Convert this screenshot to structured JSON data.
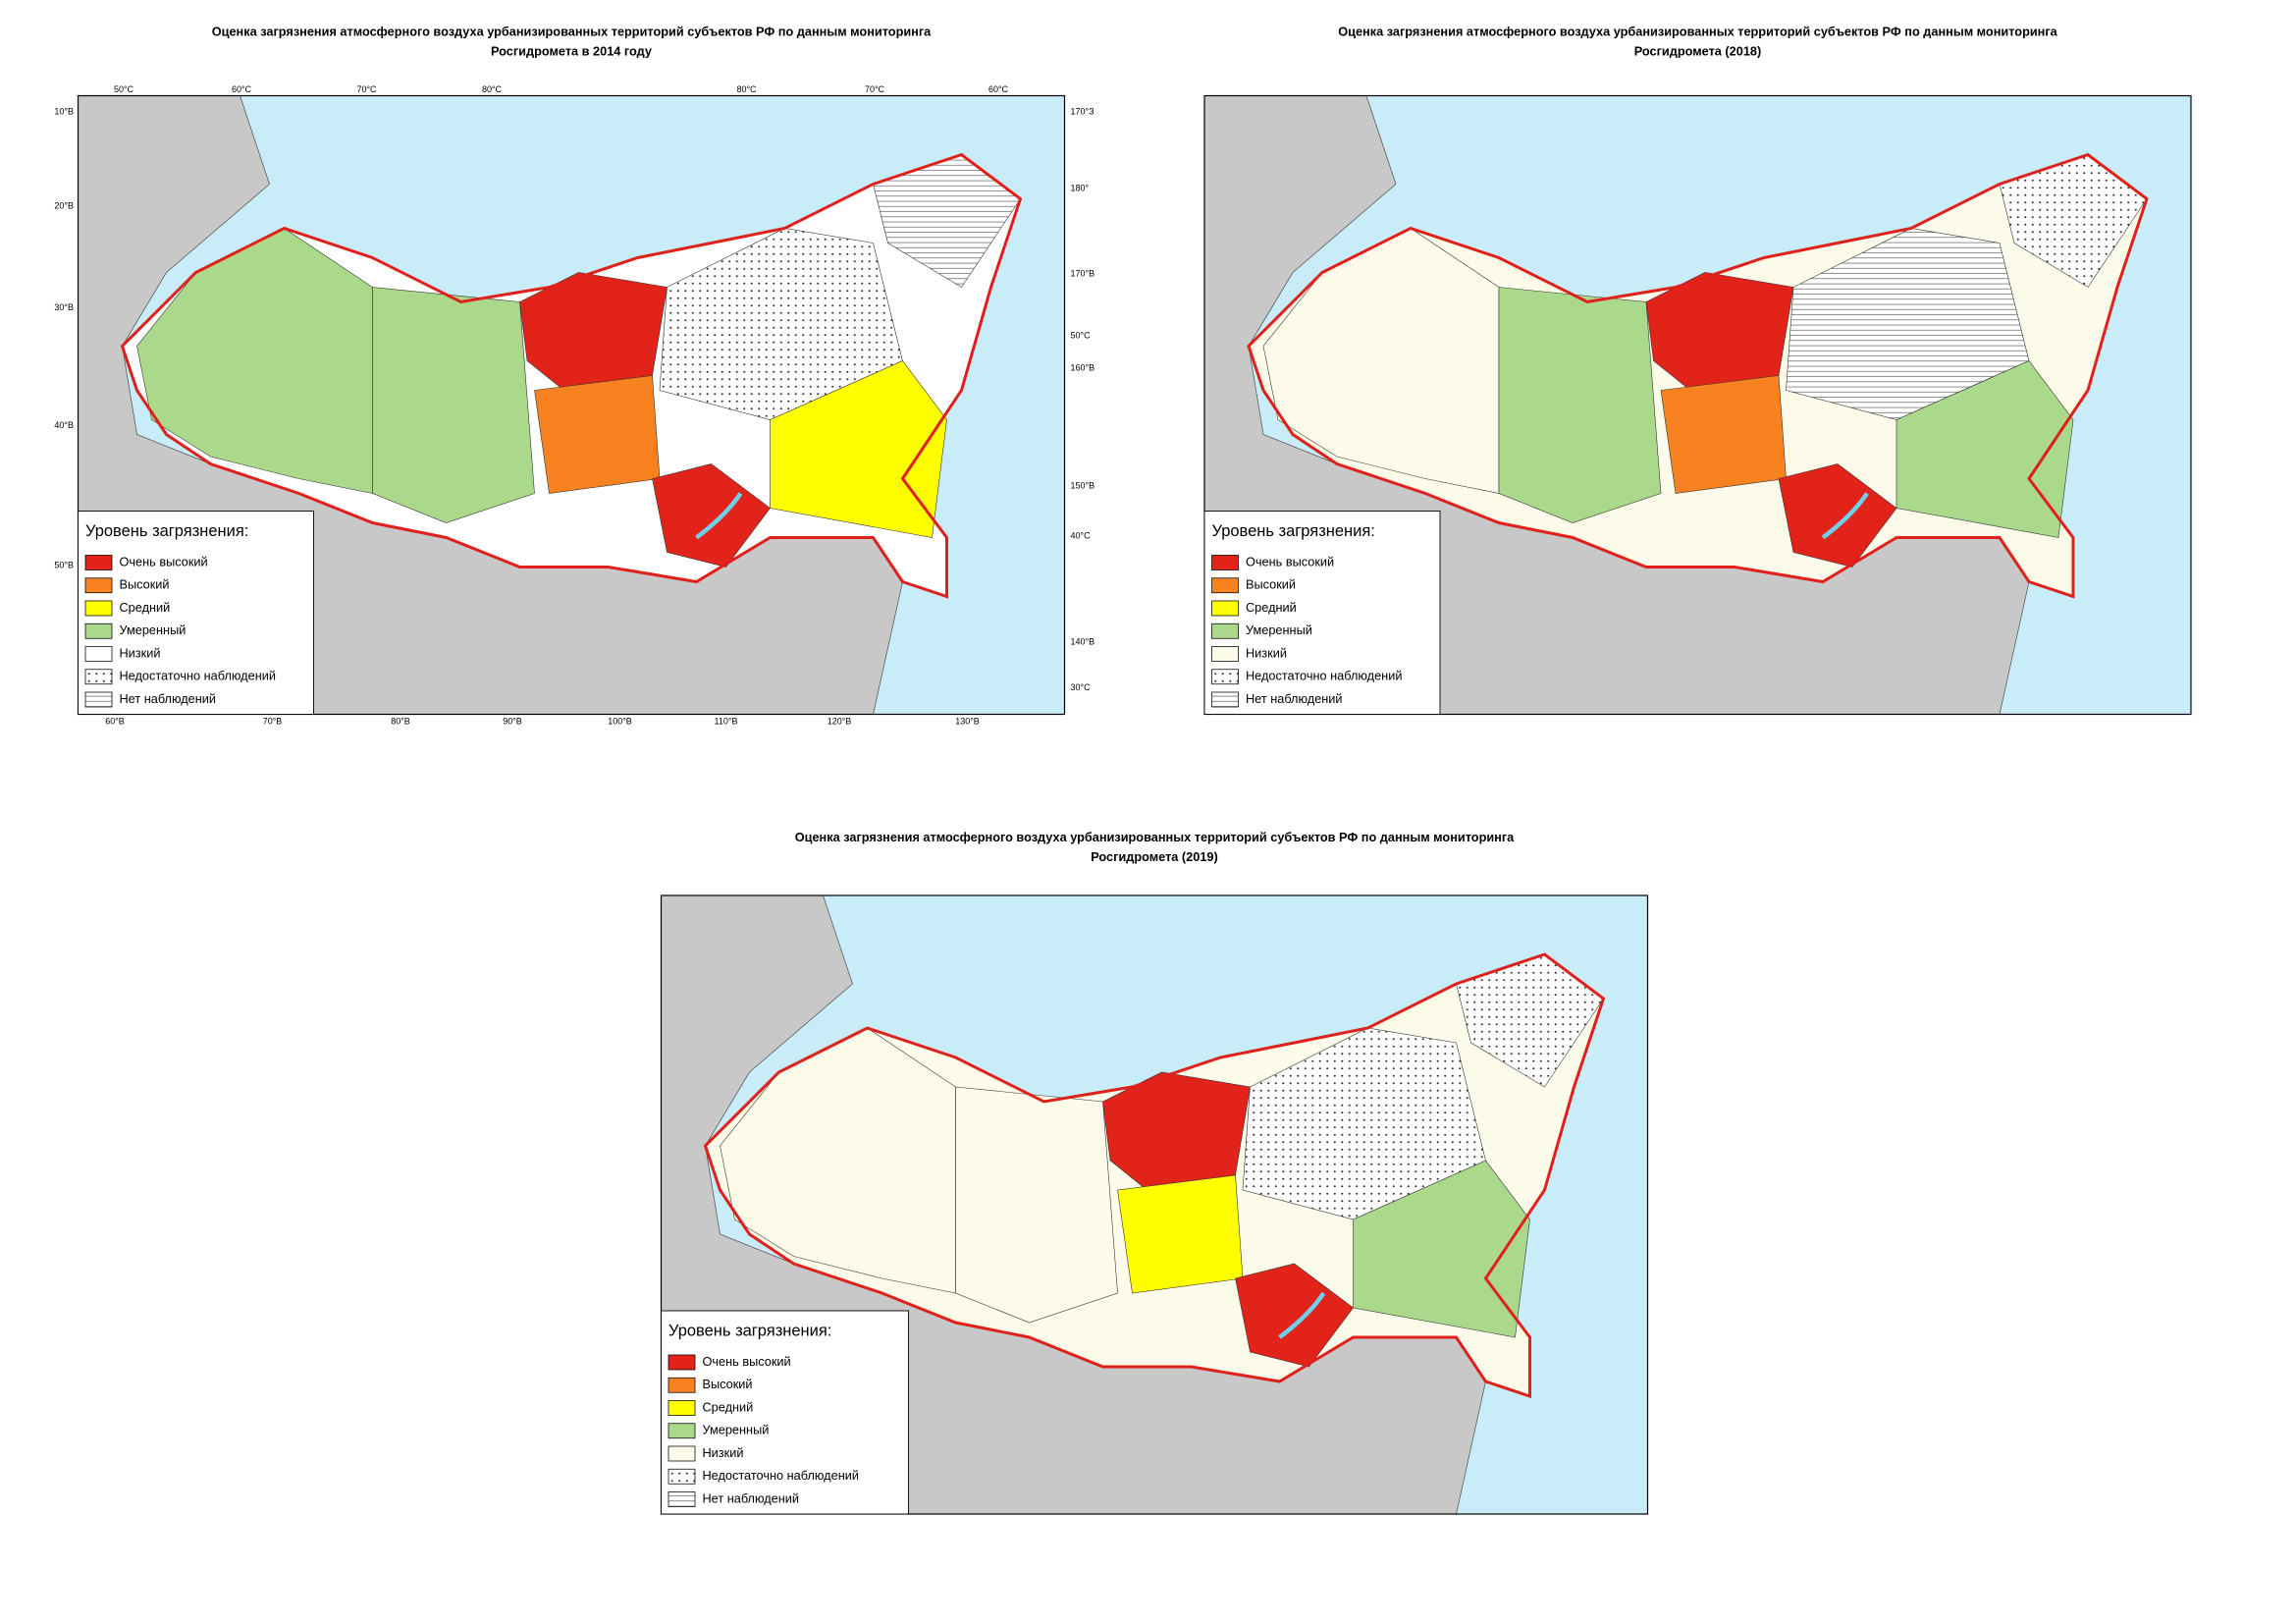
{
  "maps": [
    {
      "title": [
        "Оценка загрязнения атмосферного воздуха урбанизированных территорий субъектов РФ по данным мониторинга",
        "Росгидромета в 2014 году"
      ],
      "legend": {
        "title": "Уровень загрязнения:",
        "items": [
          "Очень высокий",
          "Высокий",
          "Средний",
          "Умеренный",
          "Низкий",
          "Недостаточно наблюдений",
          "Нет наблюдений"
        ]
      },
      "graticule": {
        "top": [
          "50°С",
          "60°С",
          "70°С",
          "80°С",
          "80°С",
          "70°С",
          "60°С"
        ],
        "right": [
          "170°З",
          "180°",
          "170°В",
          "50°С",
          "160°В",
          "150°В",
          "40°С",
          "140°В",
          "30°С"
        ],
        "left": [
          "10°В",
          "20°В",
          "30°В",
          "40°В",
          "50°В"
        ],
        "bottom": [
          "60°В",
          "70°В",
          "80°В",
          "90°В",
          "100°В",
          "110°В",
          "120°В",
          "130°В"
        ]
      }
    },
    {
      "title": [
        "Оценка загрязнения атмосферного воздуха урбанизированных территорий субъектов РФ по данным мониторинга",
        "Росгидромета (2018)"
      ],
      "legend": {
        "title": "Уровень загрязнения:",
        "items": [
          "Очень высокий",
          "Высокий",
          "Средний",
          "Умеренный",
          "Низкий",
          "Недостаточно наблюдений",
          "Нет наблюдений"
        ]
      }
    },
    {
      "title": [
        "Оценка загрязнения атмосферного воздуха урбанизированных территорий субъектов РФ по данным мониторинга",
        "Росгидромета (2019)"
      ],
      "legend": {
        "title": "Уровень загрязнения:",
        "items": [
          "Очень высокий",
          "Высокий",
          "Средний",
          "Умеренный",
          "Низкий",
          "Недостаточно наблюдений",
          "Нет наблюдений"
        ]
      }
    }
  ]
}
